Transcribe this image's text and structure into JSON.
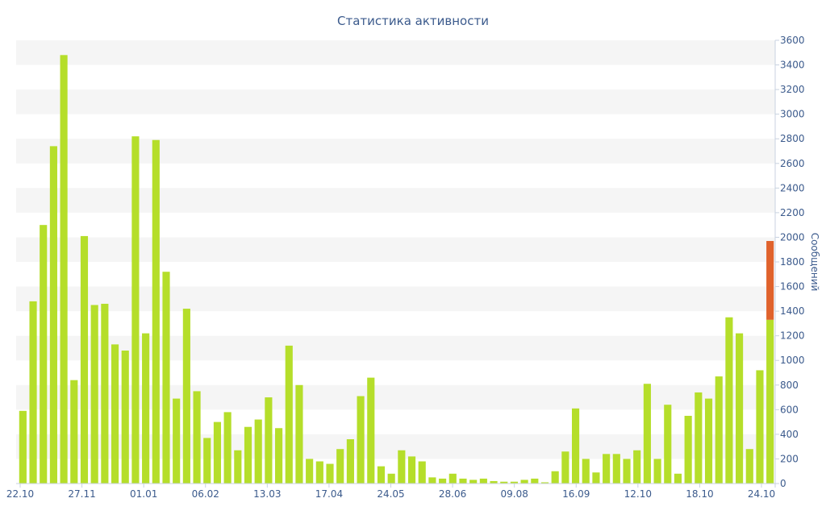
{
  "chart_data": {
    "type": "bar",
    "title": "Статистика активности",
    "ylabel": "Сообщений",
    "ylim": [
      0,
      3600
    ],
    "y_axis_position": "right",
    "y_ticks": [
      0,
      200,
      400,
      600,
      800,
      1000,
      1200,
      1400,
      1600,
      1800,
      2000,
      2200,
      2400,
      2600,
      2800,
      3000,
      3200,
      3400,
      3600
    ],
    "x_tick_labels": [
      "22.10",
      "27.11",
      "01.01",
      "06.02",
      "13.03",
      "17.04",
      "24.05",
      "28.06",
      "09.08",
      "16.09",
      "12.10",
      "18.10",
      "24.10"
    ],
    "grid": "alternating horizontal bands",
    "colors": {
      "bar": "#b5de2a",
      "highlight": "#e0622c",
      "axis_text": "#3b5a8c",
      "band": "#f5f5f5"
    },
    "series": [
      {
        "values": [
          590,
          1480,
          2100,
          2740,
          3480,
          840,
          2010,
          1450,
          1460,
          1130,
          1080,
          2820,
          1220,
          2790,
          1720,
          690,
          1420,
          750,
          370,
          500,
          580,
          270,
          460,
          520,
          700,
          450,
          1120,
          800,
          200,
          180,
          160,
          280,
          360,
          710,
          860,
          140,
          80,
          270,
          220,
          180,
          50,
          40,
          80,
          40,
          30,
          40,
          20,
          15,
          15,
          30,
          40,
          10,
          100,
          260,
          610,
          200,
          90,
          240,
          240,
          200,
          270,
          810,
          200,
          640,
          80,
          550,
          740,
          690,
          870,
          1350,
          1220,
          280,
          920,
          1330
        ]
      }
    ],
    "highlight": {
      "bar_index": 73,
      "base": 1330,
      "top": 1970
    }
  }
}
